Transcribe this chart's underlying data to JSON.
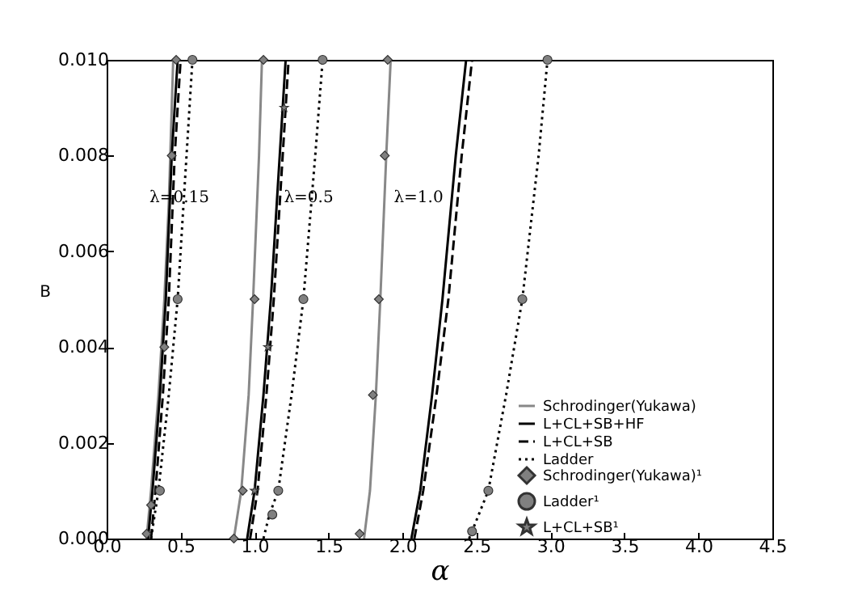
{
  "chart_data": {
    "type": "line",
    "xlabel": "α",
    "ylabel": "B",
    "xlim": [
      0,
      4.5
    ],
    "ylim": [
      0,
      0.01
    ],
    "xticks": [
      {
        "value": 0,
        "label": "0.0"
      },
      {
        "value": 0.5,
        "label": "0.5"
      },
      {
        "value": 1,
        "label": "1.0"
      },
      {
        "value": 1.5,
        "label": "1.5"
      },
      {
        "value": 2,
        "label": "2.0"
      },
      {
        "value": 2.5,
        "label": "2.5"
      },
      {
        "value": 3,
        "label": "3.0"
      },
      {
        "value": 3.5,
        "label": "3.5"
      },
      {
        "value": 4,
        "label": "4.0"
      },
      {
        "value": 4.5,
        "label": "4.5"
      }
    ],
    "yticks": [
      {
        "value": 0,
        "label": "0.000"
      },
      {
        "value": 0.002,
        "label": "0.002"
      },
      {
        "value": 0.004,
        "label": "0.004"
      },
      {
        "value": 0.006,
        "label": "0.006"
      },
      {
        "value": 0.008,
        "label": "0.008"
      },
      {
        "value": 0.01,
        "label": "0.010"
      }
    ],
    "legend": "bottom right",
    "grid": false,
    "annotations": [
      "λ=0.15",
      "λ=0.5",
      "λ=1.0"
    ],
    "series": [
      {
        "name": "Schrodinger(Yukawa)",
        "line_style": "solid",
        "color": "#888888",
        "x": [
          0.27,
          0.3,
          0.35,
          0.39,
          0.42,
          0.45
        ],
        "values": [
          0,
          0.001,
          0.003,
          0.005,
          0.007,
          0.01
        ]
      },
      {
        "name": "L+CL+SB+HF",
        "line_style": "solid",
        "color": "#000000",
        "x": [
          0.28,
          0.31,
          0.36,
          0.4,
          0.44,
          0.48
        ],
        "values": [
          0,
          0.001,
          0.003,
          0.005,
          0.008,
          0.01
        ]
      },
      {
        "name": "L+CL+SB",
        "line_style": "dashed",
        "color": "#000000",
        "x": [
          0.3,
          0.33,
          0.38,
          0.42,
          0.46,
          0.5
        ],
        "values": [
          0,
          0.001,
          0.003,
          0.005,
          0.008,
          0.01
        ]
      },
      {
        "name": "Ladder",
        "line_style": "dotted",
        "color": "#000000",
        "x": [
          0.3,
          0.35,
          0.42,
          0.48,
          0.54,
          0.58
        ],
        "values": [
          0,
          0.001,
          0.003,
          0.005,
          0.008,
          0.01
        ]
      },
      {
        "line_style": "solid",
        "color": "#888888",
        "x": [
          0.86,
          0.91,
          0.96,
          0.99,
          1.03,
          1.05
        ],
        "values": [
          0,
          0.001,
          0.003,
          0.005,
          0.008,
          0.01
        ]
      },
      {
        "line_style": "solid",
        "color": "#000000",
        "x": [
          0.95,
          1,
          1.06,
          1.11,
          1.17,
          1.21
        ],
        "values": [
          0,
          0.001,
          0.003,
          0.005,
          0.008,
          0.01
        ]
      },
      {
        "line_style": "dashed",
        "color": "#000000",
        "x": [
          0.97,
          1.02,
          1.08,
          1.13,
          1.19,
          1.23
        ],
        "values": [
          0,
          0.001,
          0.003,
          0.005,
          0.008,
          0.01
        ]
      },
      {
        "line_style": "dotted",
        "color": "#000000",
        "x": [
          1.06,
          1.1,
          1.16,
          1.25,
          1.33,
          1.41,
          1.46
        ],
        "values": [
          0,
          0.0005,
          0.001,
          0.003,
          0.005,
          0.008,
          0.01
        ]
      },
      {
        "line_style": "solid",
        "color": "#888888",
        "x": [
          1.74,
          1.78,
          1.82,
          1.85,
          1.89,
          1.92
        ],
        "values": [
          0,
          0.001,
          0.003,
          0.005,
          0.008,
          0.01
        ]
      },
      {
        "line_style": "solid",
        "color": "#000000",
        "x": [
          2.06,
          2.12,
          2.2,
          2.27,
          2.36,
          2.43
        ],
        "values": [
          0,
          0.001,
          0.003,
          0.005,
          0.008,
          0.01
        ]
      },
      {
        "line_style": "dashed",
        "color": "#000000",
        "x": [
          2.08,
          2.14,
          2.23,
          2.31,
          2.4,
          2.47
        ],
        "values": [
          0,
          0.001,
          0.003,
          0.005,
          0.008,
          0.01
        ]
      },
      {
        "line_style": "dotted",
        "color": "#000000",
        "x": [
          2.45,
          2.47,
          2.58,
          2.7,
          2.81,
          2.92,
          2.98
        ],
        "values": [
          0,
          0.00015,
          0.001,
          0.003,
          0.005,
          0.008,
          0.01
        ]
      },
      {
        "name": "Schrodinger(Yukawa)¹",
        "type": "scatter",
        "marker": "diamond",
        "color": "#808080",
        "x": [
          0.27,
          0.3,
          0.39,
          0.44,
          0.47,
          0.86,
          0.92,
          1,
          1.06,
          1.71,
          1.8,
          1.84,
          1.88,
          1.9
        ],
        "values": [
          0.0001,
          0.0007,
          0.004,
          0.008,
          0.01,
          0,
          0.001,
          0.005,
          0.01,
          0.0001,
          0.003,
          0.005,
          0.008,
          0.01
        ]
      },
      {
        "name": "Ladder¹",
        "type": "scatter",
        "marker": "circle",
        "color": "#808080",
        "x": [
          0.36,
          0.48,
          0.58,
          1.12,
          1.16,
          1.33,
          1.46,
          2.47,
          2.58,
          2.81,
          2.98
        ],
        "values": [
          0.001,
          0.005,
          0.01,
          0.0005,
          0.001,
          0.005,
          0.01,
          0.00015,
          0.001,
          0.005,
          0.01
        ]
      },
      {
        "name": "L+CL+SB¹",
        "type": "scatter",
        "marker": "star",
        "color": "#808080",
        "x": [
          1,
          1.09,
          1.2
        ],
        "values": [
          0.001,
          0.004,
          0.009
        ]
      }
    ]
  }
}
